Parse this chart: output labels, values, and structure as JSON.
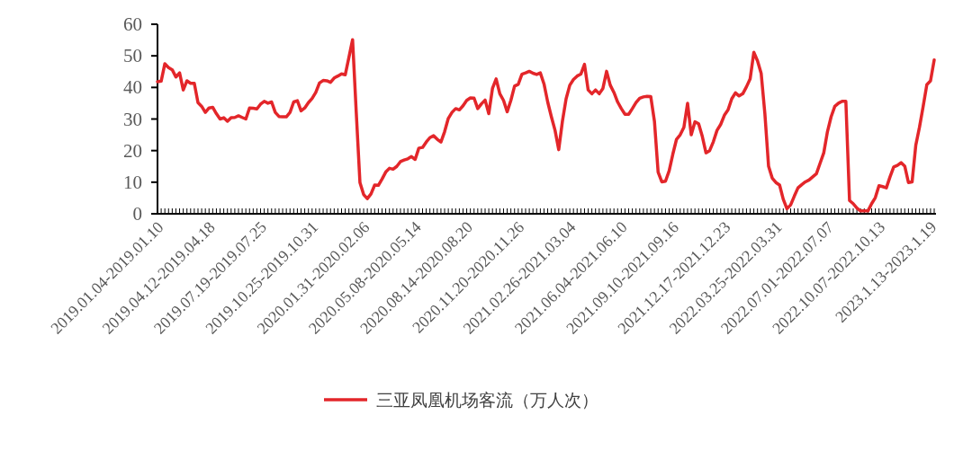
{
  "chart_data": {
    "type": "line",
    "categories": [
      null,
      "2019.01.04-2019.01.10",
      null,
      null,
      null,
      null,
      null,
      null,
      null,
      null,
      null,
      null,
      null,
      null,
      null,
      "2019.04.12-2019.04.18",
      null,
      null,
      null,
      null,
      null,
      null,
      null,
      null,
      null,
      null,
      null,
      null,
      null,
      "2019.07.19-2019.07.25",
      null,
      null,
      null,
      null,
      null,
      null,
      null,
      null,
      null,
      null,
      null,
      null,
      null,
      "2019.10.25-2019.10.31",
      null,
      null,
      null,
      null,
      null,
      null,
      null,
      null,
      null,
      null,
      null,
      null,
      null,
      "2020.01.31-2020.02.06",
      null,
      null,
      null,
      null,
      null,
      null,
      null,
      null,
      null,
      null,
      null,
      null,
      null,
      "2020.05.08-2020.05.14",
      null,
      null,
      null,
      null,
      null,
      null,
      null,
      null,
      null,
      null,
      null,
      null,
      null,
      "2020.08.14-2020.08.20",
      null,
      null,
      null,
      null,
      null,
      null,
      null,
      null,
      null,
      null,
      null,
      null,
      null,
      "2020.11.20-2020.11.26",
      null,
      null,
      null,
      null,
      null,
      null,
      null,
      null,
      null,
      null,
      null,
      null,
      null,
      "2021.02.26-2021.03.04",
      null,
      null,
      null,
      null,
      null,
      null,
      null,
      null,
      null,
      null,
      null,
      null,
      null,
      "2021.06.04-2021.06.10",
      null,
      null,
      null,
      null,
      null,
      null,
      null,
      null,
      null,
      null,
      null,
      null,
      null,
      "2021.09.10-2021.09.16",
      null,
      null,
      null,
      null,
      null,
      null,
      null,
      null,
      null,
      null,
      null,
      null,
      null,
      "2021.12.17-2021.12.23",
      null,
      null,
      null,
      null,
      null,
      null,
      null,
      null,
      null,
      null,
      null,
      null,
      null,
      "2022.03.25-2022.03.31",
      null,
      null,
      null,
      null,
      null,
      null,
      null,
      null,
      null,
      null,
      null,
      null,
      null,
      "2022.07.01-2022.07.07",
      null,
      null,
      null,
      null,
      null,
      null,
      null,
      null,
      null,
      null,
      null,
      null,
      null,
      "2022.10.07-2022.10.13",
      null,
      null,
      null,
      null,
      null,
      null,
      null,
      null,
      null,
      null,
      null,
      null,
      null,
      "2023.1.13-2023.1.19"
    ],
    "series": [
      {
        "name": "三亚凤凰机场客流（万人次）",
        "color": "#e3262a",
        "values": [
          41.8,
          42,
          47.5,
          46.3,
          45.6,
          43.3,
          44.6,
          39.2,
          42.1,
          41.3,
          41.3,
          35.2,
          34.0,
          32.1,
          33.5,
          33.7,
          31.7,
          30.0,
          30.4,
          29.3,
          30.4,
          30.5,
          31.0,
          30.5,
          30.0,
          33.5,
          33.4,
          33.2,
          34.7,
          35.6,
          35.0,
          35.4,
          32.1,
          30.8,
          30.7,
          30.7,
          32.1,
          35.4,
          35.8,
          32.6,
          33.5,
          35.2,
          36.5,
          38.4,
          41.4,
          42.2,
          42.1,
          41.6,
          43.0,
          43.6,
          44.3,
          44.0,
          49.5,
          55.1,
          32,
          9.9,
          6.1,
          4.8,
          6.3,
          9.1,
          9.0,
          11.0,
          13.2,
          14.4,
          14.1,
          15.0,
          16.5,
          17.0,
          17.4,
          18.1,
          17.2,
          20.8,
          21.0,
          22.7,
          24.1,
          24.7,
          23.6,
          22.7,
          26.0,
          30.2,
          32.1,
          33.3,
          32.9,
          34.2,
          35.9,
          36.7,
          36.6,
          33.3,
          34.8,
          36.0,
          31.7,
          39.7,
          42.7,
          38.0,
          35.9,
          32.3,
          35.9,
          40.4,
          41.0,
          44.2,
          44.6,
          45.1,
          44.5,
          44.1,
          44.6,
          41.1,
          35.4,
          30.7,
          26.4,
          20.3,
          29.3,
          36.4,
          40.7,
          42.5,
          43.6,
          44.2,
          47.3,
          39.2,
          38.0,
          39.2,
          38.0,
          39.7,
          45.1,
          40.7,
          38.4,
          35.4,
          33.3,
          31.5,
          31.5,
          33.3,
          35.2,
          36.6,
          37.0,
          37.2,
          37.1,
          29.3,
          13.2,
          10.1,
          10.3,
          13.6,
          18.9,
          23.6,
          25.0,
          27.4,
          35.0,
          25.0,
          29.1,
          28.5,
          24.5,
          19.3,
          20.0,
          22.8,
          26.4,
          28.3,
          31.2,
          32.9,
          36.4,
          38.3,
          37.3,
          38.0,
          40.2,
          42.7,
          51.1,
          48.4,
          44.4,
          31.7,
          15.1,
          11.3,
          9.9,
          9.1,
          4.6,
          1.6,
          2.8,
          5.6,
          8.2,
          9.2,
          10.1,
          10.7,
          11.7,
          12.7,
          16.0,
          19.3,
          26.0,
          30.7,
          34.0,
          35.0,
          35.6,
          35.6,
          4.2,
          3.2,
          1.8,
          0.9,
          0.9,
          0.9,
          3.2,
          5.1,
          8.9,
          8.6,
          8.2,
          11.7,
          14.8,
          15.3,
          16.2,
          15.1,
          9.9,
          10.1,
          21.7,
          27.4,
          34.0,
          40.9,
          42.1,
          48.7
        ]
      }
    ],
    "ylim": [
      0,
      60
    ],
    "yticks": [
      0,
      10,
      20,
      30,
      40,
      50,
      60
    ],
    "legend": "bottom"
  }
}
